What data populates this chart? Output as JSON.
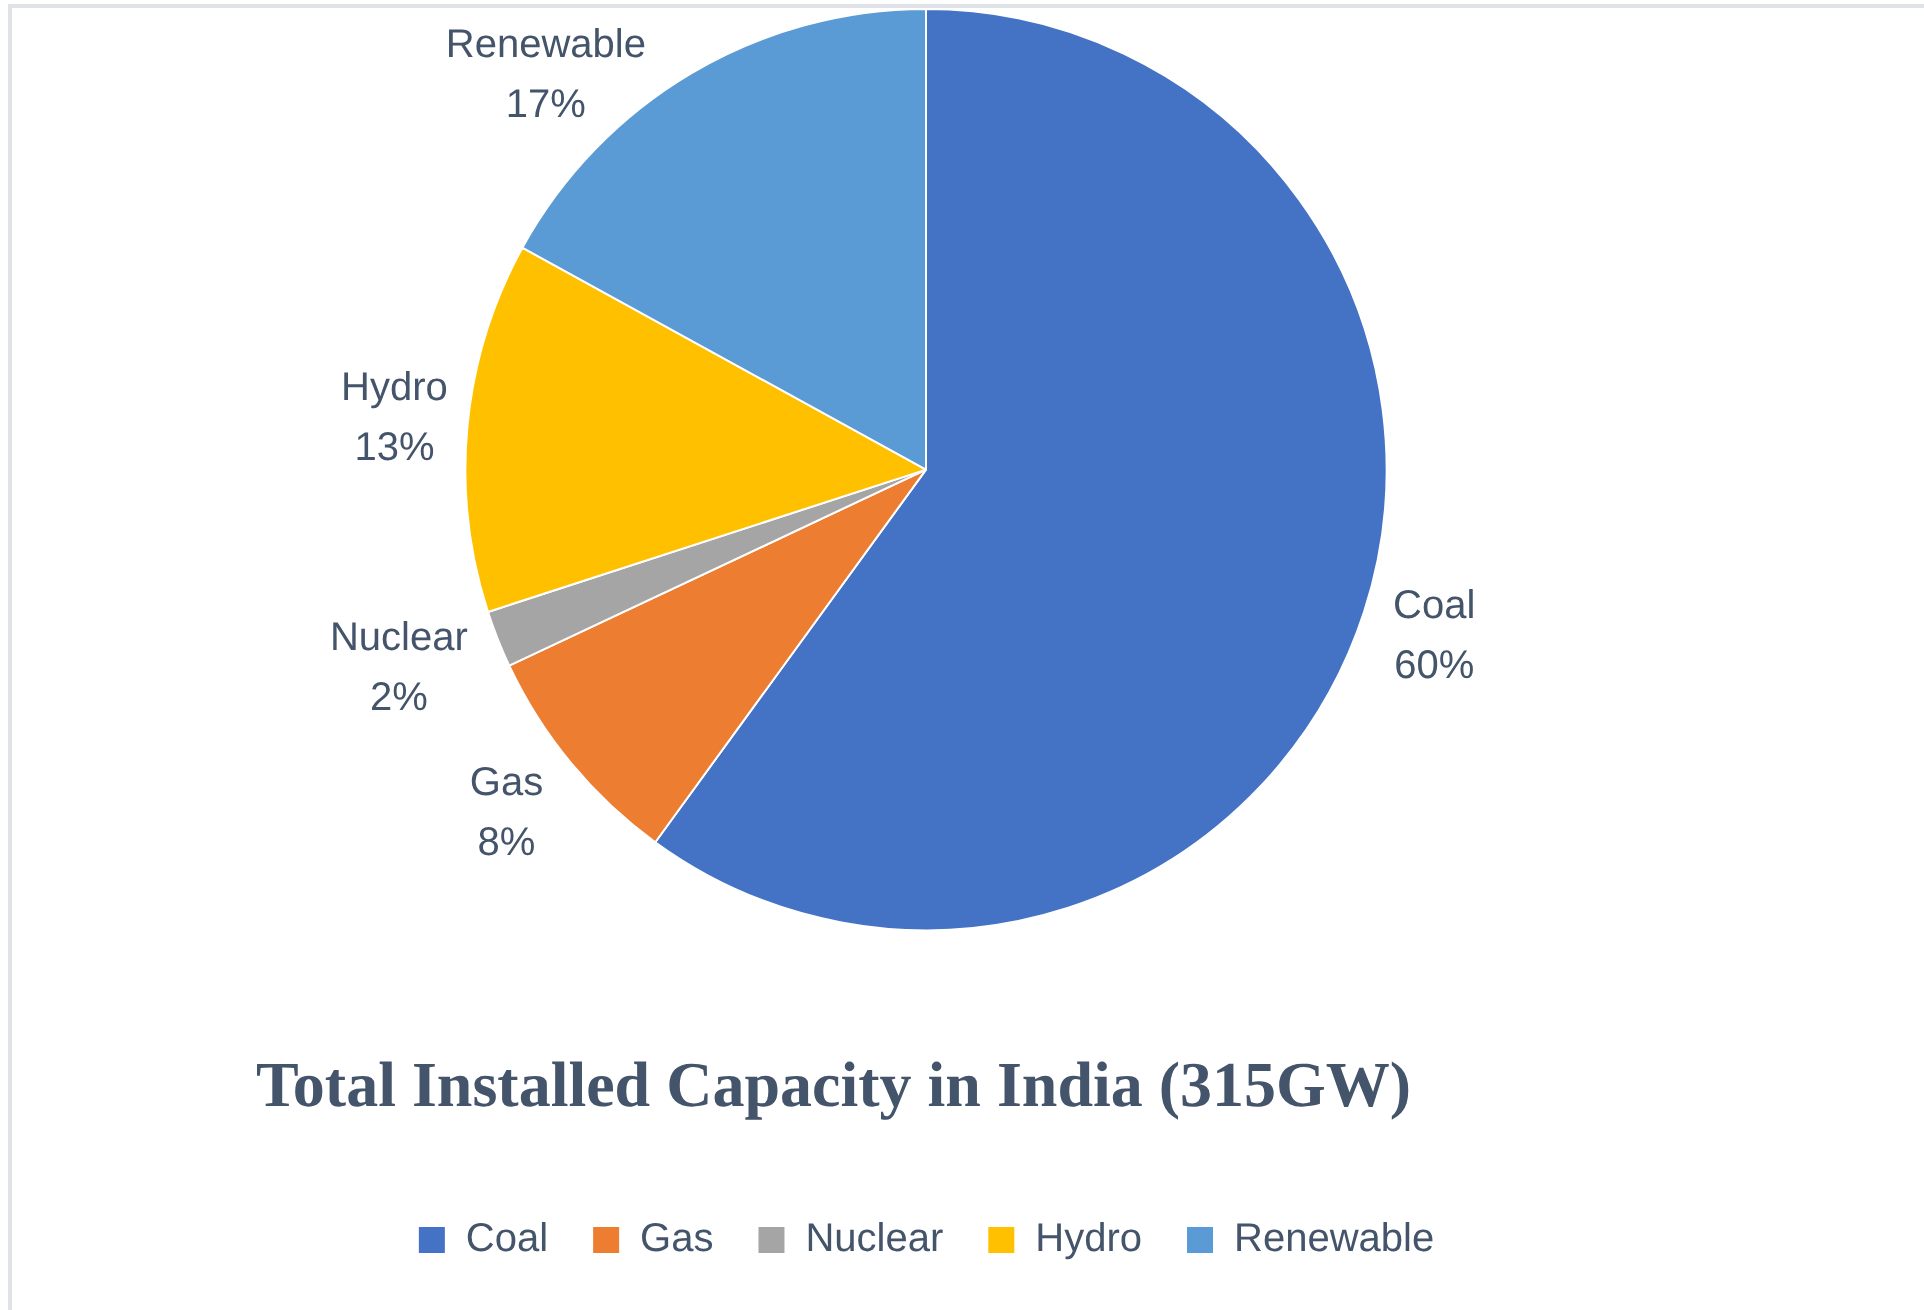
{
  "chart_data": {
    "type": "pie",
    "title": "Total Installed Capacity in India (315GW)",
    "categories": [
      "Coal",
      "Gas",
      "Nuclear",
      "Hydro",
      "Renewable"
    ],
    "values": [
      60,
      8,
      2,
      13,
      17
    ],
    "colors": [
      "#4472c4",
      "#ed7d31",
      "#a5a5a5",
      "#ffc000",
      "#5b9bd5"
    ],
    "value_labels": [
      "60%",
      "8%",
      "2%",
      "13%",
      "17%"
    ],
    "legend": "bottom"
  }
}
